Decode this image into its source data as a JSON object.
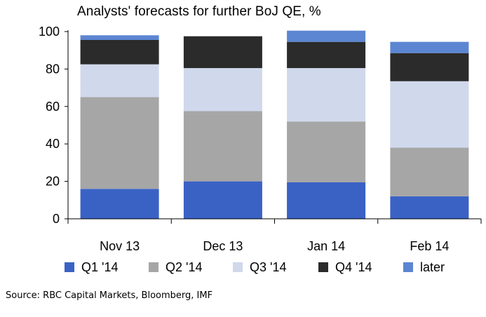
{
  "chart_data": {
    "type": "bar",
    "stacked": true,
    "title": "Analysts' forecasts for further BoJ QE, %",
    "categories": [
      "Nov 13",
      "Dec 13",
      "Jan 14",
      "Feb 14"
    ],
    "series": [
      {
        "name": "Q1 '14",
        "color": "#3a62c5",
        "values": [
          16,
          20,
          19.5,
          12
        ]
      },
      {
        "name": "Q2 '14",
        "color": "#a6a6a6",
        "values": [
          49,
          37.5,
          32.5,
          26
        ]
      },
      {
        "name": "Q3 '14",
        "color": "#d0d8ec",
        "values": [
          17.5,
          23,
          28.5,
          35.5
        ]
      },
      {
        "name": "Q4 '14",
        "color": "#2b2b2b",
        "values": [
          13,
          17,
          14,
          15
        ]
      },
      {
        "name": "later",
        "color": "#5c86d2",
        "values": [
          2.5,
          0,
          6,
          6
        ]
      }
    ],
    "yticks": [
      "0",
      "20",
      "40",
      "60",
      "80",
      "100"
    ],
    "ylim": [
      0,
      100
    ],
    "grid": false,
    "legend_position": "bottom"
  },
  "source": "Source: RBC Capital Markets, Bloomberg, IMF"
}
